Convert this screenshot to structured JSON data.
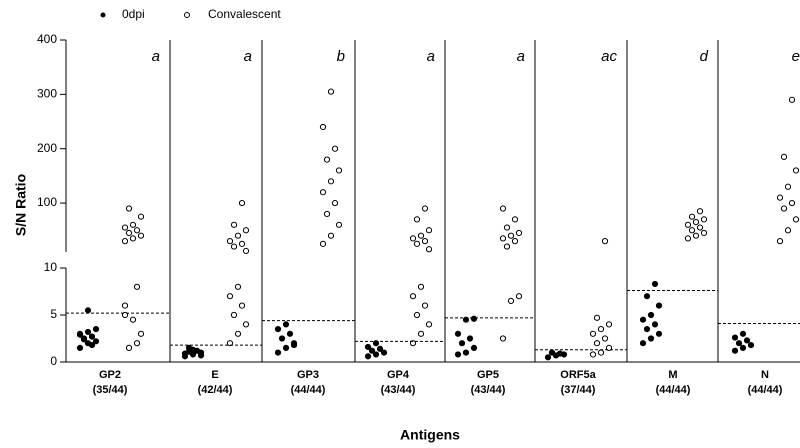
{
  "chart_data": {
    "type": "strip",
    "y_label": "S/N Ratio",
    "x_label": "Antigens",
    "categories": [
      "GP2",
      "E",
      "GP3",
      "GP4",
      "GP5",
      "ORF5a",
      "M",
      "N"
    ],
    "counts": [
      "(35/44)",
      "(42/44)",
      "(44/44)",
      "(43/44)",
      "(43/44)",
      "(37/44)",
      "(44/44)",
      "(44/44)"
    ],
    "letters": [
      "a",
      "a",
      "b",
      "a",
      "a",
      "ac",
      "d",
      "e"
    ],
    "cutoffs": [
      5.2,
      1.8,
      4.4,
      2.2,
      4.7,
      1.3,
      7.6,
      4.1
    ],
    "series": [
      {
        "name": "0dpi",
        "color": "#000000",
        "filled": true,
        "values": [
          [
            1.5,
            2,
            2.2,
            2.5,
            2.7,
            3,
            3.2,
            3.5,
            2.4,
            1.8,
            2.9,
            5.5
          ],
          [
            0.6,
            0.8,
            1,
            1.1,
            1.2,
            0.9,
            1.3,
            0.7,
            1.5
          ],
          [
            1,
            1.5,
            2,
            2.5,
            3,
            3.5,
            4,
            1.8
          ],
          [
            0.6,
            0.8,
            1,
            1.2,
            1.4,
            1.6,
            2
          ],
          [
            0.8,
            1,
            1.5,
            2,
            2.5,
            3,
            4.5,
            4.6
          ],
          [
            0.5,
            0.7,
            0.8,
            1,
            0.9
          ],
          [
            2,
            2.5,
            3,
            3.5,
            4,
            4.5,
            5,
            6,
            7,
            8.3
          ],
          [
            1.2,
            1.5,
            1.8,
            2,
            2.3,
            2.6,
            3
          ]
        ]
      },
      {
        "name": "Convalescent",
        "color": "#000000",
        "filled": false,
        "values": [
          [
            30,
            35,
            40,
            45,
            50,
            55,
            60,
            75,
            90,
            8,
            6,
            4.5,
            3,
            1.5,
            2,
            5
          ],
          [
            2,
            3,
            4,
            5,
            6,
            7,
            8,
            12,
            20,
            25,
            30,
            40,
            50,
            60,
            100
          ],
          [
            25,
            40,
            60,
            80,
            100,
            120,
            140,
            160,
            180,
            200,
            240,
            305
          ],
          [
            2,
            3,
            4,
            5,
            6,
            7,
            8,
            15,
            25,
            30,
            35,
            40,
            50,
            70,
            90
          ],
          [
            2.5,
            6.5,
            7,
            20,
            30,
            35,
            40,
            45,
            55,
            70,
            90
          ],
          [
            0.8,
            1,
            1.5,
            2,
            2.5,
            3,
            3.5,
            4,
            4.7,
            30
          ],
          [
            35,
            40,
            45,
            50,
            55,
            60,
            65,
            70,
            75,
            85
          ],
          [
            30,
            50,
            70,
            90,
            100,
            110,
            130,
            160,
            185,
            290
          ]
        ]
      }
    ],
    "ylim_lower": [
      0,
      10
    ],
    "yticks_lower": [
      0,
      5,
      10
    ],
    "ylim": [
      10,
      400
    ],
    "yticks": [
      100,
      200,
      300,
      400
    ]
  }
}
